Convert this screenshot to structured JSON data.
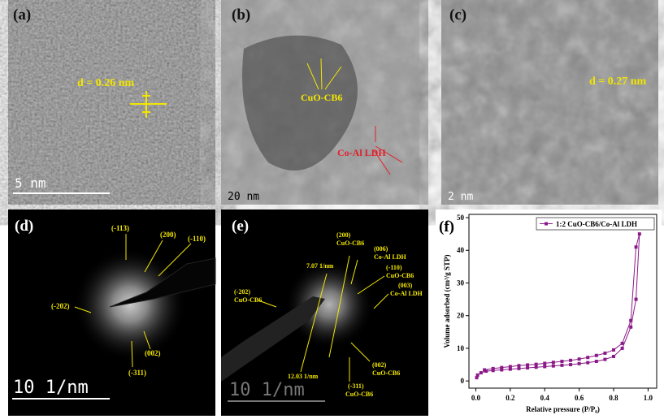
{
  "panels": [
    {
      "label": "(a)",
      "annotations": [
        "d = 0.26 nm"
      ],
      "scale_bar": "5 nm"
    },
    {
      "label": "(b)",
      "annotations": [
        "CuO-CB6",
        "Co-Al LDH"
      ],
      "scale_bar": "20 nm"
    },
    {
      "label": "(c)",
      "annotations": [
        "d = 0.27 nm"
      ],
      "scale_bar": "2 nm"
    },
    {
      "label": "(d)",
      "annotations": [
        "(-113)",
        "(200)",
        "(-110)",
        "(-202)",
        "(002)",
        "(-311)"
      ],
      "scale_bar": "10 1/nm"
    },
    {
      "label": "(e)",
      "annotations": [
        [
          "(200)",
          "CuO-CB6"
        ],
        "7.07 1/nm",
        [
          "(006)",
          "Co-Al LDH"
        ],
        [
          "(-110)",
          "CuO-CB6"
        ],
        [
          "(003)",
          "Co-Al LDH"
        ],
        [
          "(-202)",
          "CuO-CB6"
        ],
        "12.03 1/nm",
        [
          "(002)",
          "CuO-CB6"
        ],
        [
          "(-311)",
          "CuO-CB6"
        ]
      ],
      "scale_bar": "10 1/nm"
    },
    {
      "label": "(f)"
    }
  ],
  "chart_data": {
    "type": "line",
    "xlabel": "Relative pressure (P/P₀)",
    "ylabel": "Volume adsorbed (cm³/g STP)",
    "xlim": [
      -0.04,
      1.05
    ],
    "ylim": [
      -2.2,
      51
    ],
    "xticks": [
      {
        "value": 0,
        "label": "0.0"
      },
      {
        "value": 0.2,
        "label": "0.2"
      },
      {
        "value": 0.4,
        "label": "0.4"
      },
      {
        "value": 0.6,
        "label": "0.6"
      },
      {
        "value": 0.8,
        "label": "0.8"
      },
      {
        "value": 1,
        "label": "1.0"
      }
    ],
    "yticks": [
      0,
      10,
      20,
      30,
      40,
      50
    ],
    "legend": "upper right",
    "series": [
      {
        "name": "1:2 CuO-CB6/Co-Al LDH",
        "color": "#8b1a89",
        "x": [
          0.005,
          0.01,
          0.03,
          0.06,
          0.1,
          0.15,
          0.2,
          0.25,
          0.3,
          0.35,
          0.4,
          0.45,
          0.5,
          0.55,
          0.6,
          0.65,
          0.7,
          0.75,
          0.8,
          0.85,
          0.9,
          0.93,
          0.95,
          0.93,
          0.9,
          0.85,
          0.8,
          0.75,
          0.7,
          0.65,
          0.6,
          0.55,
          0.5,
          0.45,
          0.4,
          0.35,
          0.3,
          0.25,
          0.2,
          0.15,
          0.1,
          0.05
        ],
        "values": [
          1,
          1.8,
          2.5,
          3,
          3.2,
          3.4,
          3.6,
          3.8,
          4,
          4.2,
          4.4,
          4.6,
          4.8,
          5,
          5.3,
          5.6,
          6,
          6.6,
          7.5,
          10,
          16.5,
          25,
          45,
          41,
          18.5,
          11.5,
          9.5,
          8.5,
          7.8,
          7.2,
          6.7,
          6.3,
          6,
          5.7,
          5.4,
          5.1,
          4.9,
          4.7,
          4.4,
          4.1,
          3.8,
          3.4
        ]
      }
    ]
  }
}
